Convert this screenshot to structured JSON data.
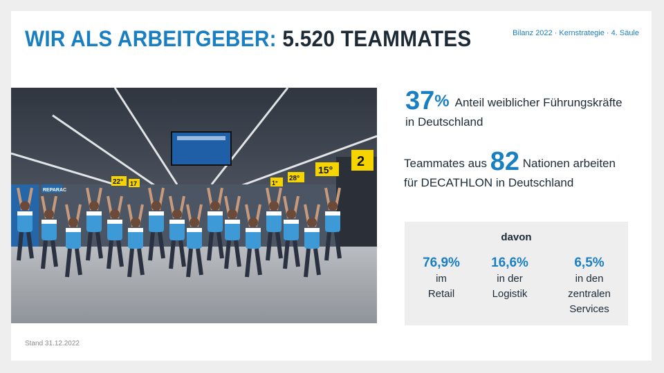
{
  "header": {
    "title_accent": "WIR ALS ARBEITGEBER:",
    "title_rest": "5.520 TEAMMATES",
    "meta": "Bilanz 2022 · Kernstrategie · 4. Säule"
  },
  "photo": {
    "price_signs": [
      "22°",
      "17",
      "1°",
      "28°",
      "15°",
      "2"
    ],
    "banner": "REPARAC"
  },
  "stat_women": {
    "value": "37",
    "unit": "%",
    "text_line1": "Anteil weiblicher Führungskräfte",
    "text_line2": "in Deutschland"
  },
  "stat_nations": {
    "prefix": "Teammates aus",
    "value": "82",
    "suffix": "Nationen arbeiten",
    "line2": "für DECATHLON in Deutschland"
  },
  "breakdown": {
    "label": "davon",
    "items": [
      {
        "value": "76,9%",
        "line1": "im",
        "line2": "Retail",
        "line3": ""
      },
      {
        "value": "16,6%",
        "line1": "in der",
        "line2": "Logistik",
        "line3": ""
      },
      {
        "value": "6,5%",
        "line1": "in den",
        "line2": "zentralen",
        "line3": "Services"
      }
    ]
  },
  "footer": {
    "stand": "Stand 31.12.2022"
  },
  "colors": {
    "accent": "#1a7fc1",
    "text": "#1c2a36",
    "box": "#eeeeee"
  }
}
